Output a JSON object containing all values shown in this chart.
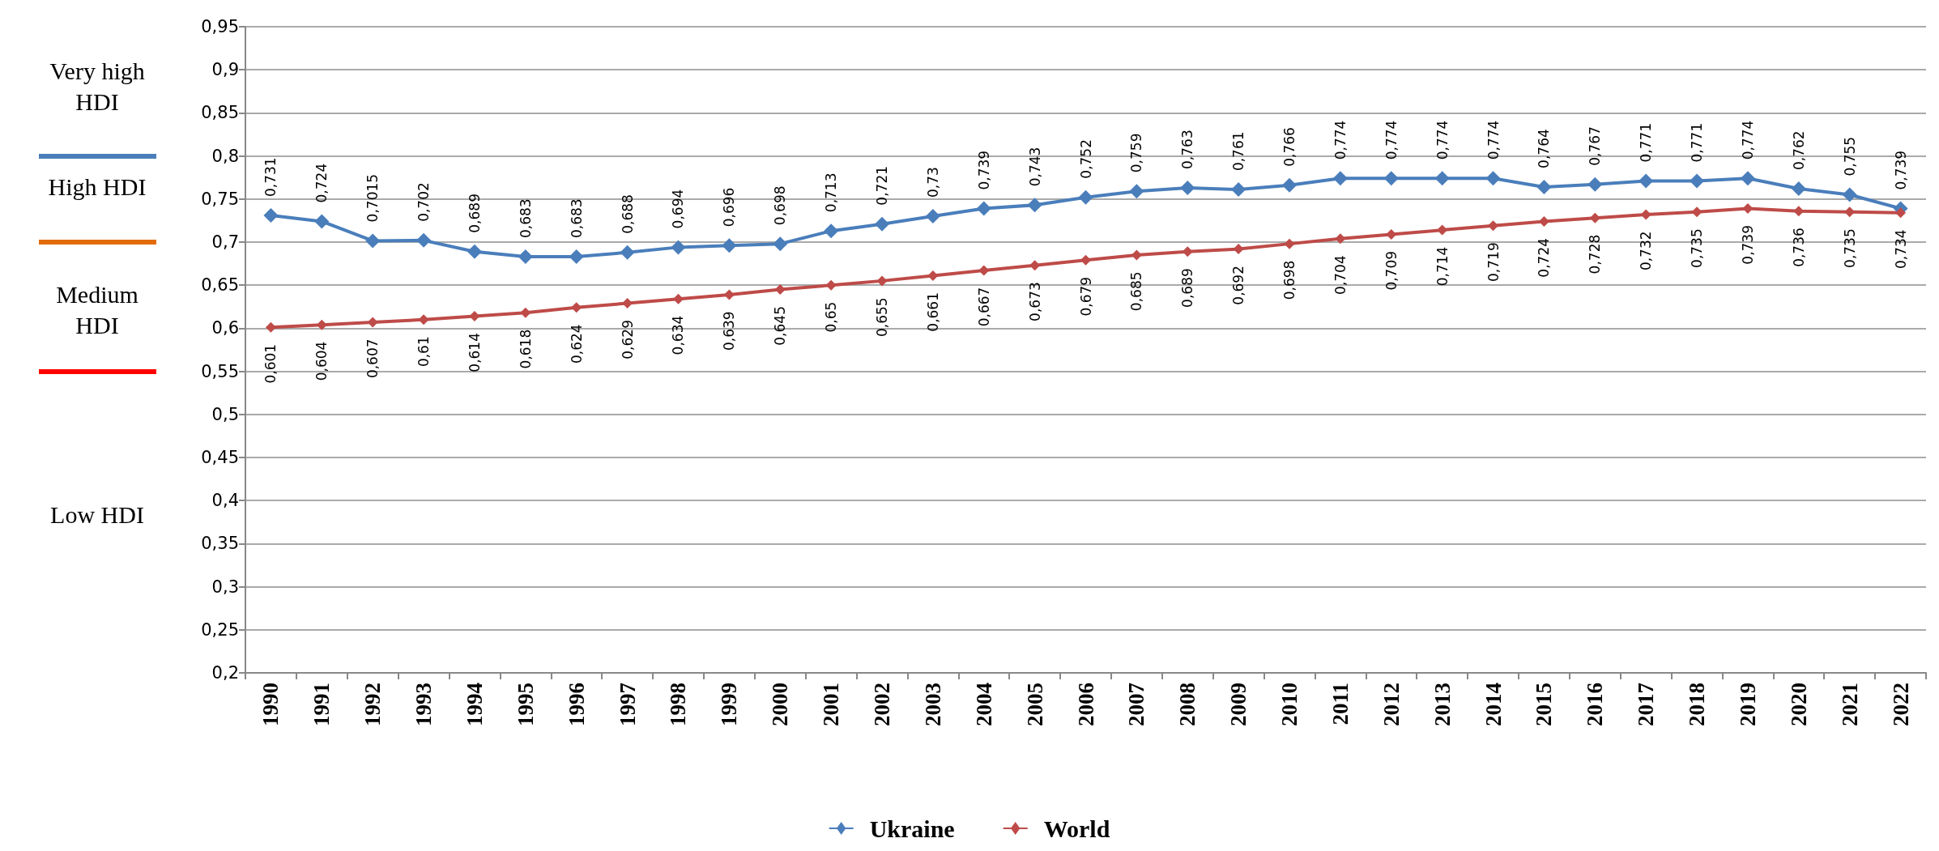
{
  "chart_data": {
    "type": "line",
    "categories": [
      "1990",
      "1991",
      "1992",
      "1993",
      "1994",
      "1995",
      "1996",
      "1997",
      "1998",
      "1999",
      "2000",
      "2001",
      "2002",
      "2003",
      "2004",
      "2005",
      "2006",
      "2007",
      "2008",
      "2009",
      "2010",
      "2011",
      "2012",
      "2013",
      "2014",
      "2015",
      "2016",
      "2017",
      "2018",
      "2019",
      "2020",
      "2021",
      "2022"
    ],
    "series": [
      {
        "name": "Ukraine",
        "color": "#4a7ebb",
        "values": [
          0.731,
          0.724,
          0.7015,
          0.702,
          0.689,
          0.683,
          0.683,
          0.688,
          0.694,
          0.696,
          0.698,
          0.713,
          0.721,
          0.73,
          0.739,
          0.743,
          0.752,
          0.759,
          0.763,
          0.761,
          0.766,
          0.774,
          0.774,
          0.774,
          0.774,
          0.764,
          0.767,
          0.771,
          0.771,
          0.774,
          0.762,
          0.755,
          0.739
        ],
        "value_labels": [
          "0,731",
          "0,724",
          "0,7015",
          "0,702",
          "0,689",
          "0,683",
          "0,683",
          "0,688",
          "0,694",
          "0,696",
          "0,698",
          "0,713",
          "0,721",
          "0,73",
          "0,739",
          "0,743",
          "0,752",
          "0,759",
          "0,763",
          "0,761",
          "0,766",
          "0,774",
          "0,774",
          "0,774",
          "0,774",
          "0,764",
          "0,767",
          "0,771",
          "0,771",
          "0,774",
          "0,762",
          "0,755",
          "0,739"
        ]
      },
      {
        "name": "World",
        "color": "#be4b48",
        "values": [
          0.601,
          0.604,
          0.607,
          0.61,
          0.614,
          0.618,
          0.624,
          0.629,
          0.634,
          0.639,
          0.645,
          0.65,
          0.655,
          0.661,
          0.667,
          0.673,
          0.679,
          0.685,
          0.689,
          0.692,
          0.698,
          0.704,
          0.709,
          0.714,
          0.719,
          0.724,
          0.728,
          0.732,
          0.735,
          0.739,
          0.736,
          0.735,
          0.734
        ],
        "value_labels": [
          "0,601",
          "0,604",
          "0,607",
          "0,61",
          "0,614",
          "0,618",
          "0,624",
          "0,629",
          "0,634",
          "0,639",
          "0,645",
          "0,65",
          "0,655",
          "0,661",
          "0,667",
          "0,673",
          "0,679",
          "0,685",
          "0,689",
          "0,692",
          "0,698",
          "0,704",
          "0,709",
          "0,714",
          "0,719",
          "0,724",
          "0,728",
          "0,732",
          "0,735",
          "0,739",
          "0,736",
          "0,735",
          "0,734"
        ]
      }
    ],
    "ylim": [
      0.2,
      0.95
    ],
    "yticks": [
      {
        "value": 0.2,
        "label": "0,2"
      },
      {
        "value": 0.25,
        "label": "0,25"
      },
      {
        "value": 0.3,
        "label": "0,3"
      },
      {
        "value": 0.35,
        "label": "0,35"
      },
      {
        "value": 0.4,
        "label": "0,4"
      },
      {
        "value": 0.45,
        "label": "0,45"
      },
      {
        "value": 0.5,
        "label": "0,5"
      },
      {
        "value": 0.55,
        "label": "0,55"
      },
      {
        "value": 0.6,
        "label": "0,6"
      },
      {
        "value": 0.65,
        "label": "0,65"
      },
      {
        "value": 0.7,
        "label": "0,7"
      },
      {
        "value": 0.75,
        "label": "0,75"
      },
      {
        "value": 0.8,
        "label": "0,8"
      },
      {
        "value": 0.85,
        "label": "0,85"
      },
      {
        "value": 0.9,
        "label": "0,9"
      },
      {
        "value": 0.95,
        "label": "0,95"
      }
    ],
    "annotations": [
      "Very high HDI",
      "High HDI",
      "Medium HDI",
      "Low HDI"
    ],
    "grid": "y",
    "legend": "bottom",
    "marker": "diamond",
    "line_style": "solid"
  }
}
